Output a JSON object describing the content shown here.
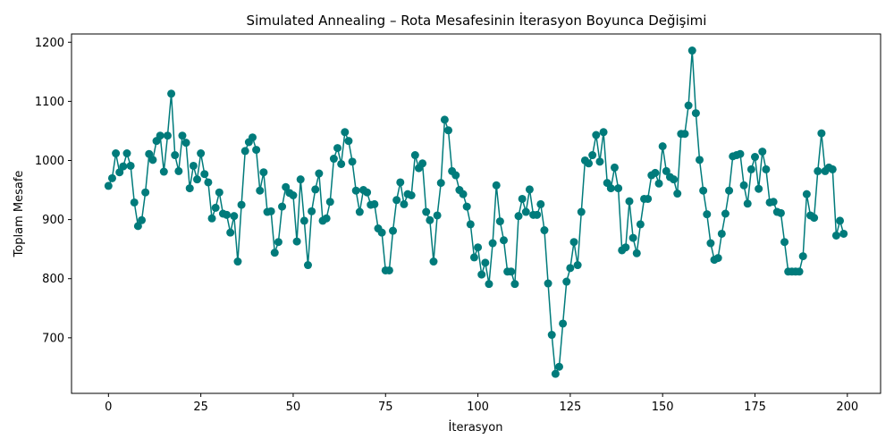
{
  "chart_data": {
    "type": "line",
    "title": "Simulated Annealing – Rota Mesafesinin İterasyon Boyunca Değişimi",
    "xlabel": "İterasyon",
    "ylabel": "Toplam Mesafe",
    "xlim": [
      -10,
      209
    ],
    "ylim": [
      606,
      1214
    ],
    "xticks": [
      0,
      25,
      50,
      75,
      100,
      125,
      150,
      175,
      200
    ],
    "yticks": [
      700,
      800,
      900,
      1000,
      1100,
      1200
    ],
    "grid": false,
    "marker": "circle",
    "color": "#007b7b",
    "series": [
      {
        "values": [
          957,
          970,
          1012,
          980,
          990,
          1012,
          991,
          929,
          889,
          899,
          946,
          1011,
          1001,
          1033,
          1042,
          981,
          1042,
          1113,
          1009,
          982,
          1042,
          1030,
          953,
          991,
          968,
          1012,
          977,
          963,
          902,
          920,
          946,
          910,
          908,
          878,
          906,
          829,
          925,
          1016,
          1031,
          1039,
          1018,
          949,
          980,
          913,
          914,
          844,
          862,
          922,
          955,
          945,
          941,
          863,
          968,
          898,
          823,
          914,
          951,
          978,
          898,
          902,
          930,
          1003,
          1021,
          994,
          1048,
          1033,
          998,
          949,
          913,
          950,
          946,
          925,
          926,
          885,
          878,
          814,
          814,
          881,
          933,
          963,
          926,
          943,
          941,
          1009,
          987,
          995,
          913,
          899,
          829,
          907,
          962,
          1069,
          1051,
          982,
          975,
          950,
          943,
          922,
          892,
          836,
          853,
          807,
          827,
          791,
          860,
          958,
          897,
          865,
          812,
          812,
          791,
          906,
          935,
          913,
          951,
          908,
          908,
          926,
          882,
          792,
          705,
          639,
          651,
          724,
          795,
          818,
          862,
          823,
          913,
          1000,
          995,
          1009,
          1043,
          998,
          1048,
          962,
          953,
          988,
          953,
          848,
          853,
          931,
          869,
          843,
          892,
          935,
          935,
          975,
          979,
          961,
          1024,
          982,
          972,
          968,
          944,
          1045,
          1045,
          1093,
          1186,
          1080,
          1001,
          949,
          909,
          860,
          832,
          835,
          876,
          910,
          949,
          1007,
          1009,
          1011,
          958,
          927,
          985,
          1006,
          952,
          1015,
          985,
          929,
          930,
          913,
          911,
          862,
          812,
          812,
          812,
          812,
          838,
          943,
          907,
          903,
          982,
          1046,
          982,
          988,
          985,
          873,
          898,
          876
        ]
      }
    ]
  }
}
